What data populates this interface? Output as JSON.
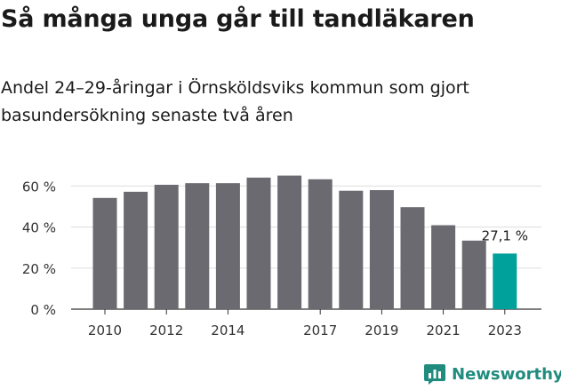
{
  "title": "Så många unga går till tandläkaren",
  "subtitle": "Andel 24–29-åringar i Örnsköldsviks kommun som gjort basundersökning senaste två åren",
  "brand": {
    "name": "Newsworthy",
    "color": "#1f8c7e"
  },
  "chart_data": {
    "type": "bar",
    "categories": [
      "2010",
      "2011",
      "2012",
      "2013",
      "2014",
      "2015",
      "2016",
      "2017",
      "2018",
      "2019",
      "2020",
      "2021",
      "2022",
      "2023"
    ],
    "x_tick_labels": [
      "2010",
      "2012",
      "2014",
      "2017",
      "2019",
      "2021",
      "2023"
    ],
    "values": [
      54.2,
      57.2,
      60.6,
      61.4,
      61.4,
      64.1,
      65.1,
      63.3,
      57.7,
      58.0,
      49.7,
      40.9,
      33.4,
      27.1
    ],
    "y_ticks": [
      "0 %",
      "20 %",
      "40 %",
      "60 %"
    ],
    "ylim": [
      0,
      70
    ],
    "annotation": "27,1 %",
    "grid": true,
    "bar_color": "#6b6a70",
    "highlight_color": "#00a19a"
  }
}
